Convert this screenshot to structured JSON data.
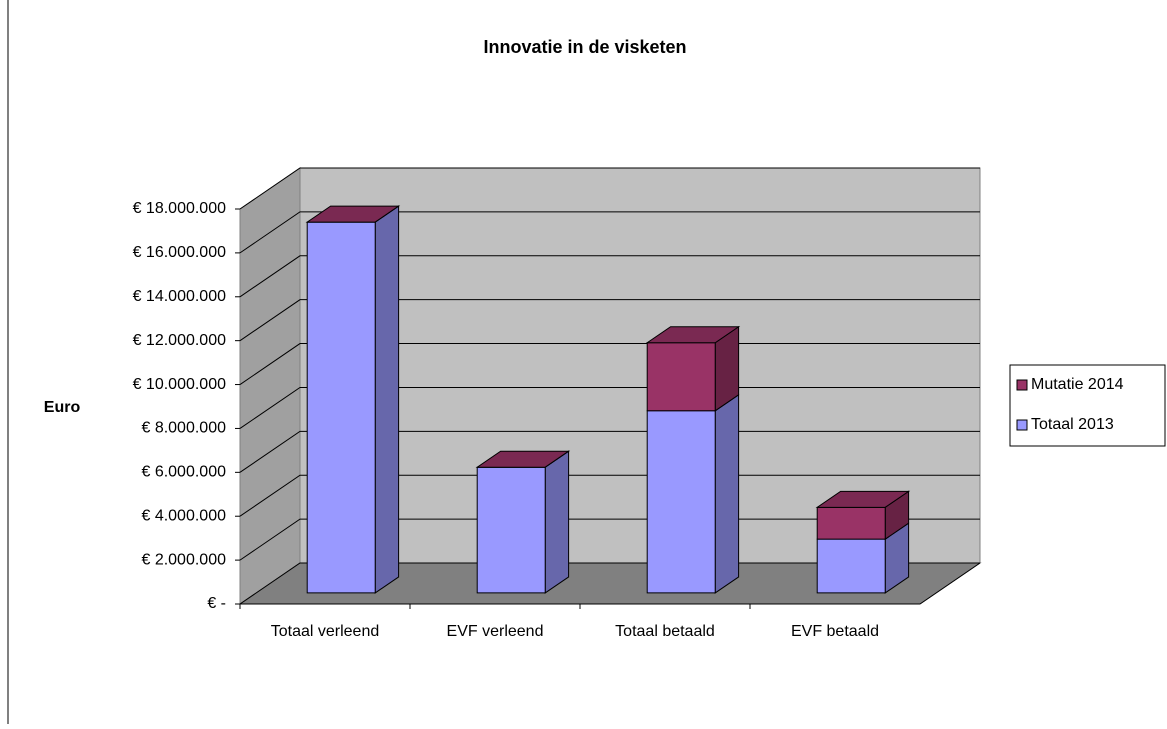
{
  "chart_data": {
    "type": "bar3d_stacked",
    "title": "Innovatie in de visketen",
    "y_axis_label": "Euro",
    "categories": [
      "Totaal verleend",
      "EVF verleend",
      "Totaal betaald",
      "EVF betaald"
    ],
    "series": [
      {
        "name": "Totaal 2013",
        "color": "#9999ff",
        "values": [
          16900000,
          5730000,
          8300000,
          2450000
        ]
      },
      {
        "name": "Mutatie 2014",
        "color": "#993366",
        "values": [
          0,
          0,
          3100000,
          1450000
        ]
      }
    ],
    "ylim": [
      0,
      18000000
    ],
    "yticks": [
      {
        "value": 0,
        "label": "€ -"
      },
      {
        "value": 2000000,
        "label": "€ 2.000.000"
      },
      {
        "value": 4000000,
        "label": "€ 4.000.000"
      },
      {
        "value": 6000000,
        "label": "€ 6.000.000"
      },
      {
        "value": 8000000,
        "label": "€ 8.000.000"
      },
      {
        "value": 10000000,
        "label": "€ 10.000.000"
      },
      {
        "value": 12000000,
        "label": "€ 12.000.000"
      },
      {
        "value": 14000000,
        "label": "€ 14.000.000"
      },
      {
        "value": 16000000,
        "label": "€ 16.000.000"
      },
      {
        "value": 18000000,
        "label": "€ 18.000.000"
      }
    ],
    "grid": true,
    "legend": "right"
  }
}
